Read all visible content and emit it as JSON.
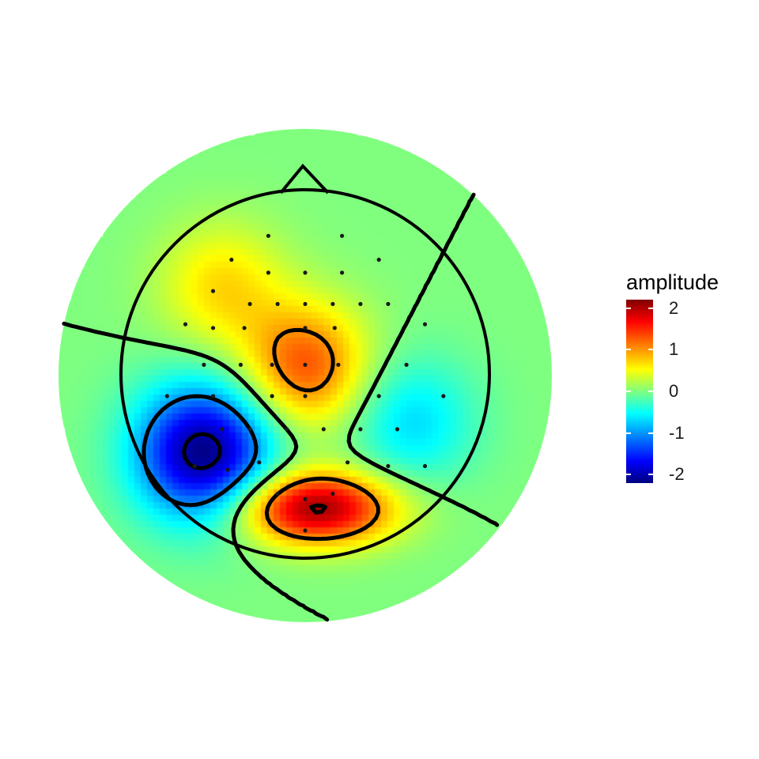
{
  "chart_data": {
    "type": "heatmap",
    "subtype": "topographic-scalp-map",
    "legend": {
      "title": "amplitude",
      "range": [
        -2.2,
        2.2
      ],
      "ticks": [
        {
          "value": 2,
          "label": "2"
        },
        {
          "value": 1,
          "label": "1"
        },
        {
          "value": 0,
          "label": "0"
        },
        {
          "value": -1,
          "label": "-1"
        },
        {
          "value": -2,
          "label": "-2"
        }
      ],
      "colormap": "jet",
      "placement": "right"
    },
    "contour_levels": [
      -2,
      -1,
      0,
      1,
      2
    ],
    "sources": [
      {
        "region": "central",
        "x": 0.0,
        "y": 0.05,
        "amplitude": 1.3
      },
      {
        "region": "occipital",
        "x": 0.05,
        "y": -0.72,
        "amplitude": 2.1
      },
      {
        "region": "left-parietal",
        "x": -0.55,
        "y": -0.42,
        "amplitude": -2.2
      },
      {
        "region": "left-frontal",
        "x": -0.45,
        "y": 0.48,
        "amplitude": 0.7
      },
      {
        "region": "right-temporal",
        "x": 0.58,
        "y": -0.25,
        "amplitude": -0.7
      }
    ],
    "electrodes": [
      [
        -0.2,
        0.75
      ],
      [
        0.2,
        0.75
      ],
      [
        -0.4,
        0.62
      ],
      [
        0.4,
        0.62
      ],
      [
        -0.2,
        0.55
      ],
      [
        0.0,
        0.55
      ],
      [
        0.2,
        0.55
      ],
      [
        -0.5,
        0.45
      ],
      [
        -0.3,
        0.38
      ],
      [
        -0.15,
        0.38
      ],
      [
        0.0,
        0.38
      ],
      [
        0.15,
        0.38
      ],
      [
        0.3,
        0.38
      ],
      [
        0.45,
        0.38
      ],
      [
        -0.65,
        0.27
      ],
      [
        -0.5,
        0.25
      ],
      [
        -0.33,
        0.25
      ],
      [
        0.0,
        0.25
      ],
      [
        0.16,
        0.25
      ],
      [
        0.65,
        0.27
      ],
      [
        -0.55,
        0.05
      ],
      [
        -0.35,
        0.05
      ],
      [
        -0.18,
        0.05
      ],
      [
        0.0,
        0.05
      ],
      [
        0.18,
        0.05
      ],
      [
        0.55,
        0.05
      ],
      [
        -0.75,
        -0.12
      ],
      [
        -0.5,
        -0.12
      ],
      [
        -0.18,
        -0.12
      ],
      [
        0.0,
        -0.12
      ],
      [
        0.4,
        -0.12
      ],
      [
        0.75,
        -0.12
      ],
      [
        -0.45,
        -0.3
      ],
      [
        -0.3,
        -0.3
      ],
      [
        -0.1,
        -0.3
      ],
      [
        0.1,
        -0.3
      ],
      [
        0.3,
        -0.3
      ],
      [
        0.5,
        -0.3
      ],
      [
        -0.6,
        -0.5
      ],
      [
        -0.42,
        -0.52
      ],
      [
        -0.25,
        -0.48
      ],
      [
        0.23,
        -0.48
      ],
      [
        0.45,
        -0.5
      ],
      [
        0.65,
        -0.5
      ],
      [
        -0.15,
        -0.65
      ],
      [
        0.0,
        -0.68
      ],
      [
        0.15,
        -0.65
      ],
      [
        0.0,
        -0.85
      ]
    ]
  }
}
